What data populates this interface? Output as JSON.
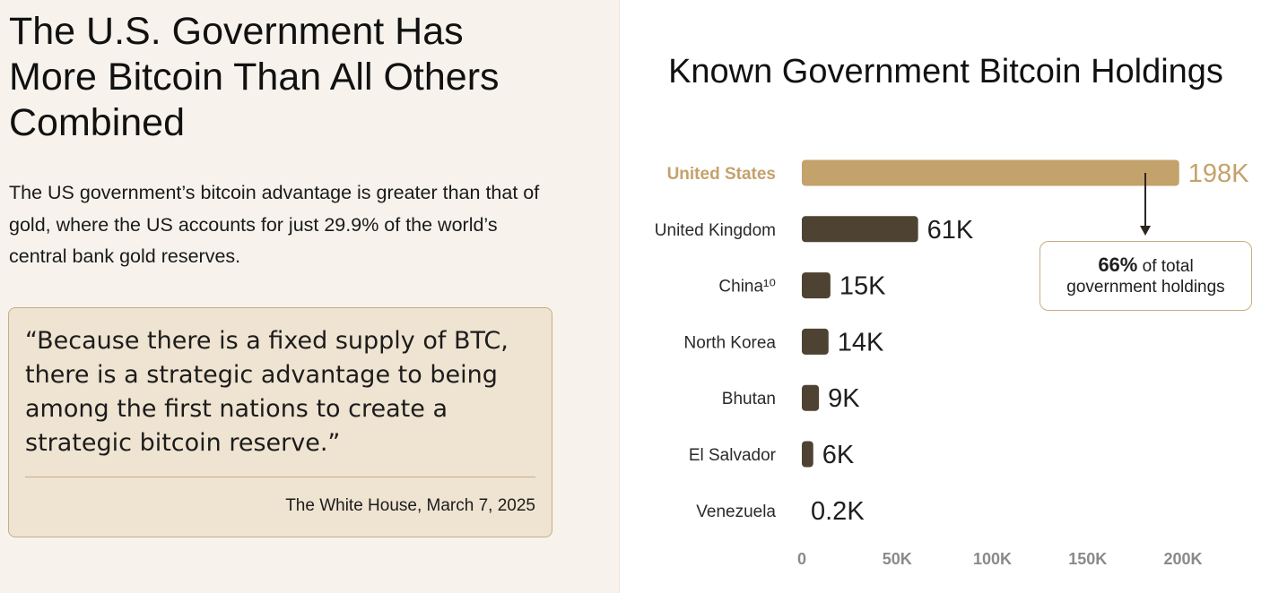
{
  "article": {
    "headline": "The U.S. Government Has More Bitcoin Than All Others Combined",
    "intro": "The US government’s bitcoin advantage is greater than that of gold, where the US accounts for just 29.9% of the world’s central bank gold reserves.",
    "quote": {
      "text": "“Because there is a fixed supply of BTC, there is a strategic advantage to being among the first nations to create a strategic bitcoin reserve.”",
      "source": "The White House, March 7, 2025"
    }
  },
  "chart_data": {
    "type": "bar",
    "orientation": "horizontal",
    "title": "Known Government Bitcoin Holdings",
    "categories": [
      "United States",
      "United Kingdom",
      "China¹⁰",
      "North Korea",
      "Bhutan",
      "El Salvador",
      "Venezuela"
    ],
    "values": [
      198,
      61,
      15,
      14,
      9,
      6,
      0.2
    ],
    "value_labels": [
      "198K",
      "61K",
      "15K",
      "14K",
      "9K",
      "6K",
      "0.2K"
    ],
    "highlight_index": 0,
    "xlim": [
      0,
      200
    ],
    "xticks": [
      0,
      50,
      100,
      150,
      200
    ],
    "xtick_labels": [
      "0",
      "50K",
      "100K",
      "150K",
      "200K"
    ],
    "grid": false,
    "colors": {
      "highlight": "#c4a26b",
      "bar": "#4e4232"
    },
    "annotation": {
      "percent": "66%",
      "text_after_percent": " of total",
      "line2": "government holdings"
    }
  }
}
